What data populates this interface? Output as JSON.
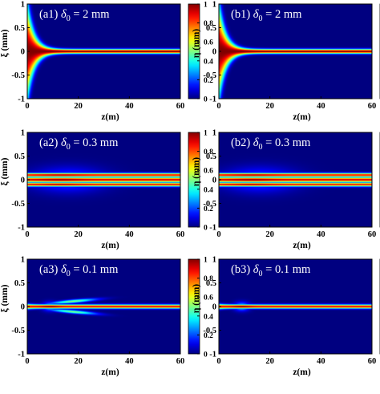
{
  "colors": {
    "colormap": "jet",
    "background": "#00008f",
    "frame": "#000000",
    "label_text": "#ffffff"
  },
  "chart_data": [
    {
      "type": "heatmap",
      "panel": "a1",
      "label": {
        "prefix": "(a1) ",
        "symbol": "δ",
        "sub": "0",
        "rest": " = 2 mm"
      },
      "xlabel": "z(m)",
      "ylabel": "ξ (mm)",
      "xlim": [
        0,
        60
      ],
      "ylim": [
        -1,
        1
      ],
      "clim": [
        0,
        1
      ],
      "xticks": [
        "0",
        "20",
        "40",
        "60"
      ],
      "yticks": [
        "1",
        "0.5",
        "0",
        "-0.5",
        "-1"
      ],
      "colorbar_ticks": [
        "1",
        "0.8",
        "0.6",
        "0.4",
        "0.2",
        "0"
      ],
      "beam": {
        "initial_halfwidth_mm": 1.0,
        "core_halfwidth_mm": 0.045,
        "lobes": "none"
      }
    },
    {
      "type": "heatmap",
      "panel": "b1",
      "label": {
        "prefix": "(b1) ",
        "symbol": "δ",
        "sub": "0",
        "rest": " = 2 mm"
      },
      "xlabel": "z(m)",
      "ylabel": "η (mm)",
      "xlim": [
        0,
        60
      ],
      "ylim": [
        -1,
        1
      ],
      "clim": [
        0,
        1
      ],
      "xticks": [
        "0",
        "20",
        "40",
        "60"
      ],
      "yticks": [
        "1",
        "0.5",
        "0",
        "-0.5",
        "-1"
      ],
      "colorbar_ticks": [
        "1",
        "0.8",
        "0.6",
        "0.4",
        "0.2",
        "0"
      ],
      "beam": {
        "initial_halfwidth_mm": 1.0,
        "core_halfwidth_mm": 0.045,
        "lobes": "none"
      }
    },
    {
      "type": "heatmap",
      "panel": "a2",
      "label": {
        "prefix": "(a2) ",
        "symbol": "δ",
        "sub": "0",
        "rest": " = 0.3 mm"
      },
      "xlabel": "z(m)",
      "ylabel": "ξ (mm)",
      "xlim": [
        0,
        60
      ],
      "ylim": [
        -1,
        1
      ],
      "clim": [
        0,
        1
      ],
      "xticks": [
        "0",
        "20",
        "40",
        "60"
      ],
      "yticks": [
        "1",
        "0.5",
        "0",
        "-0.5",
        "-1"
      ],
      "colorbar_ticks": [
        "1",
        "0.8",
        "0.6",
        "0.4",
        "0.2",
        "0"
      ],
      "beam": {
        "initial_halfwidth_mm": 0.15,
        "core_halfwidth_mm": 0.06,
        "lobes": "side"
      }
    },
    {
      "type": "heatmap",
      "panel": "b2",
      "label": {
        "prefix": "(b2) ",
        "symbol": "δ",
        "sub": "0",
        "rest": " = 0.3 mm"
      },
      "xlabel": "z(m)",
      "ylabel": "η (mm)",
      "xlim": [
        0,
        60
      ],
      "ylim": [
        -1,
        1
      ],
      "clim": [
        0,
        1
      ],
      "xticks": [
        "0",
        "20",
        "40",
        "60"
      ],
      "yticks": [
        "1",
        "0.5",
        "0",
        "-0.5",
        "-1"
      ],
      "colorbar_ticks": [
        "1",
        "0.8",
        "0.6",
        "0.4",
        "0.2",
        "0"
      ],
      "beam": {
        "initial_halfwidth_mm": 0.15,
        "core_halfwidth_mm": 0.06,
        "lobes": "side"
      }
    },
    {
      "type": "heatmap",
      "panel": "a3",
      "label": {
        "prefix": "(a3) ",
        "symbol": "δ",
        "sub": "0",
        "rest": " = 0.1 mm"
      },
      "xlabel": "z(m)",
      "ylabel": "ξ (mm)",
      "xlim": [
        0,
        60
      ],
      "ylim": [
        -1,
        1
      ],
      "clim": [
        0,
        1
      ],
      "xticks": [
        "0",
        "20",
        "40",
        "60"
      ],
      "yticks": [
        "1",
        "0.5",
        "0",
        "-0.5",
        "-1"
      ],
      "colorbar_ticks": [
        "1",
        "0.8",
        "0.6",
        "0.4",
        "0.2",
        "0"
      ],
      "beam": {
        "initial_halfwidth_mm": 0.05,
        "core_halfwidth_mm": 0.04,
        "lobes": "diverging"
      }
    },
    {
      "type": "heatmap",
      "panel": "b3",
      "label": {
        "prefix": "(b3) ",
        "symbol": "δ",
        "sub": "0",
        "rest": " = 0.1 mm"
      },
      "xlabel": "z(m)",
      "ylabel": "η (mm)",
      "xlim": [
        0,
        60
      ],
      "ylim": [
        -1,
        1
      ],
      "clim": [
        0,
        1
      ],
      "xticks": [
        "0",
        "20",
        "40",
        "60"
      ],
      "yticks": [
        "1",
        "0.5",
        "0",
        "-0.5",
        "-1"
      ],
      "colorbar_ticks": [
        "1",
        "0.8",
        "0.6",
        "0.4",
        "0.2",
        "0"
      ],
      "beam": {
        "initial_halfwidth_mm": 0.05,
        "core_halfwidth_mm": 0.04,
        "lobes": "none"
      }
    }
  ]
}
